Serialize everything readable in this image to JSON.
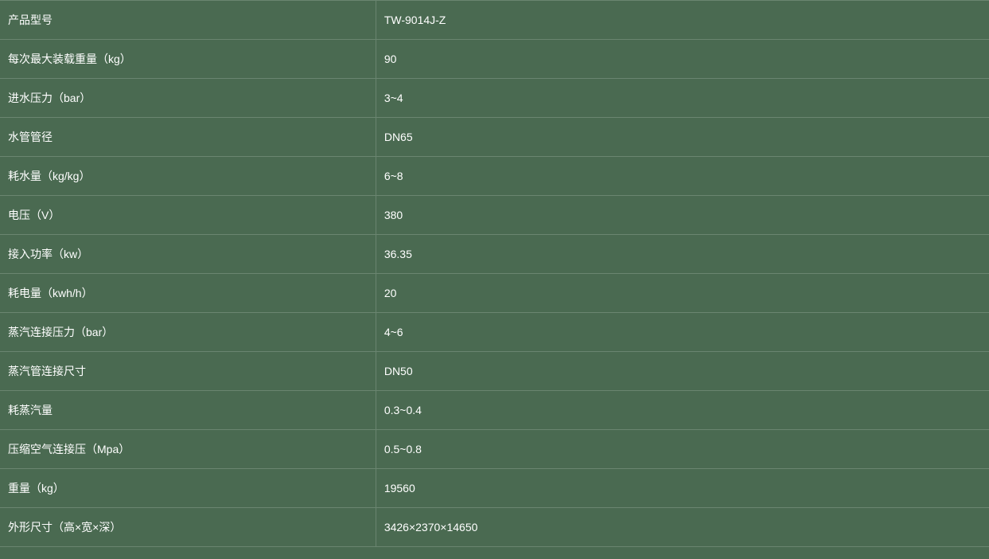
{
  "table": {
    "background_color": "#4a6a51",
    "border_color": "#6a8570",
    "text_color": "#ffffff",
    "font_size": 14,
    "label_column_width_pct": 38,
    "value_column_width_pct": 62,
    "row_padding": "14px 10px",
    "rows": [
      {
        "label": "产品型号",
        "value": "TW-9014J-Z"
      },
      {
        "label": "每次最大装载重量（kg）",
        "value": "90"
      },
      {
        "label": "进水压力（bar）",
        "value": "3~4"
      },
      {
        "label": "水管管径",
        "value": "DN65"
      },
      {
        "label": "耗水量（kg/kg）",
        "value": "6~8"
      },
      {
        "label": "电压（V）",
        "value": "380"
      },
      {
        "label": "接入功率（kw）",
        "value": "36.35"
      },
      {
        "label": "耗电量（kwh/h）",
        "value": "20"
      },
      {
        "label": "蒸汽连接压力（bar）",
        "value": "4~6"
      },
      {
        "label": "蒸汽管连接尺寸",
        "value": "DN50"
      },
      {
        "label": "耗蒸汽量",
        "value": "0.3~0.4"
      },
      {
        "label": "压缩空气连接压（Mpa）",
        "value": "0.5~0.8"
      },
      {
        "label": "重量（kg）",
        "value": "19560"
      },
      {
        "label": "外形尺寸（高×宽×深）",
        "value": "3426×2370×14650"
      }
    ]
  }
}
